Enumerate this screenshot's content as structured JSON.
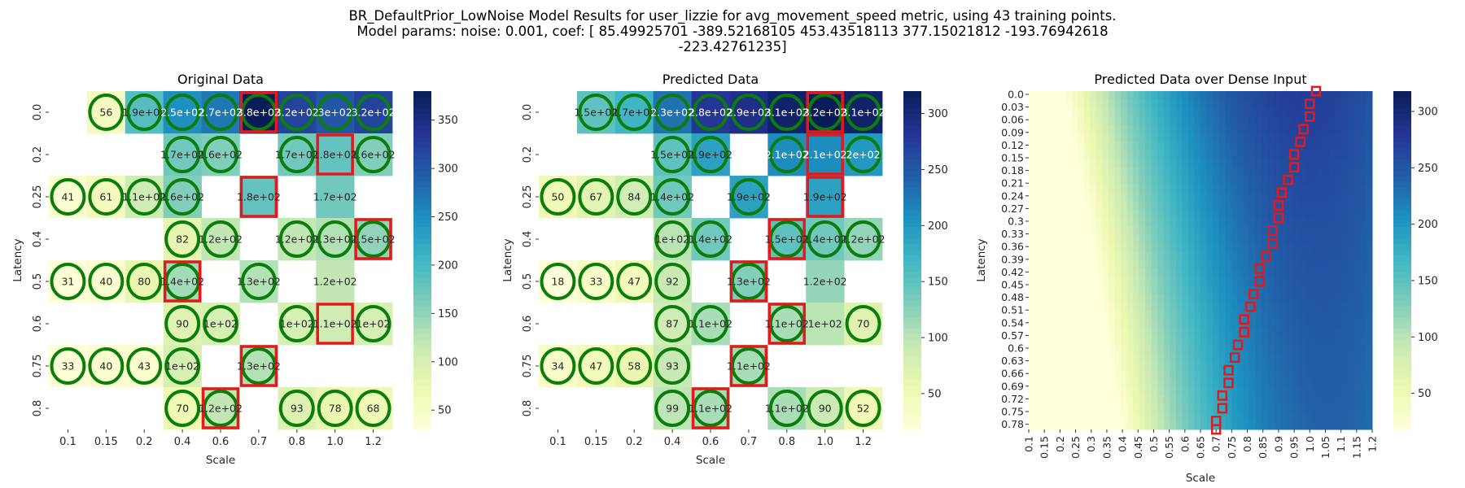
{
  "figure": {
    "title_lines": [
      "BR_DefaultPrior_LowNoise Model Results for user_lizzie for avg_movement_speed metric, using 43 training points.",
      "Model params: noise: 0.001, coef: [  85.49925701 -389.52168105  453.43518113  377.15021812 -193.76942618",
      "-223.42761235]"
    ]
  },
  "chart_data": [
    {
      "type": "heatmap",
      "title": "Original Data",
      "xlabel": "Scale",
      "ylabel": "Latency",
      "x_categories": [
        "0.1",
        "0.15",
        "0.2",
        "0.4",
        "0.6",
        "0.7",
        "0.8",
        "1.0",
        "1.2"
      ],
      "y_categories": [
        "0.0",
        "0.2",
        "0.25",
        "0.4",
        "0.5",
        "0.6",
        "0.75",
        "0.8"
      ],
      "cells": [
        {
          "r": 0,
          "c": 1,
          "v": 56,
          "label": "56",
          "circle": true
        },
        {
          "r": 0,
          "c": 2,
          "v": 190,
          "label": "1.9e+02",
          "circle": true
        },
        {
          "r": 0,
          "c": 3,
          "v": 250,
          "label": "2.5e+02",
          "circle": true
        },
        {
          "r": 0,
          "c": 4,
          "v": 270,
          "label": "2.7e+02",
          "circle": true
        },
        {
          "r": 0,
          "c": 5,
          "v": 380,
          "label": "3.8e+02",
          "circle": true,
          "box": true
        },
        {
          "r": 0,
          "c": 6,
          "v": 320,
          "label": "3.2e+02",
          "circle": true
        },
        {
          "r": 0,
          "c": 7,
          "v": 300,
          "label": "3e+02",
          "circle": true
        },
        {
          "r": 0,
          "c": 8,
          "v": 320,
          "label": "3.2e+02",
          "circle": true
        },
        {
          "r": 1,
          "c": 3,
          "v": 170,
          "label": "1.7e+02",
          "circle": true
        },
        {
          "r": 1,
          "c": 4,
          "v": 160,
          "label": "1.6e+02",
          "circle": true
        },
        {
          "r": 1,
          "c": 6,
          "v": 170,
          "label": "1.7e+02",
          "circle": true
        },
        {
          "r": 1,
          "c": 7,
          "v": 180,
          "label": "1.8e+02",
          "circle": false,
          "box": true
        },
        {
          "r": 1,
          "c": 8,
          "v": 160,
          "label": "1.6e+02",
          "circle": true
        },
        {
          "r": 2,
          "c": 0,
          "v": 41,
          "label": "41",
          "circle": true
        },
        {
          "r": 2,
          "c": 1,
          "v": 61,
          "label": "61",
          "circle": true
        },
        {
          "r": 2,
          "c": 2,
          "v": 110,
          "label": "1.1e+02",
          "circle": true
        },
        {
          "r": 2,
          "c": 3,
          "v": 160,
          "label": "1.6e+02",
          "circle": true
        },
        {
          "r": 2,
          "c": 5,
          "v": 180,
          "label": "1.8e+02",
          "circle": false,
          "box": true
        },
        {
          "r": 2,
          "c": 7,
          "v": 170,
          "label": "1.7e+02",
          "circle": false
        },
        {
          "r": 3,
          "c": 3,
          "v": 82,
          "label": "82",
          "circle": true
        },
        {
          "r": 3,
          "c": 4,
          "v": 120,
          "label": "1.2e+02",
          "circle": true
        },
        {
          "r": 3,
          "c": 6,
          "v": 120,
          "label": "1.2e+02",
          "circle": true
        },
        {
          "r": 3,
          "c": 7,
          "v": 130,
          "label": "1.3e+02",
          "circle": true
        },
        {
          "r": 3,
          "c": 8,
          "v": 150,
          "label": "1.5e+02",
          "circle": true,
          "box": true
        },
        {
          "r": 4,
          "c": 0,
          "v": 31,
          "label": "31",
          "circle": true
        },
        {
          "r": 4,
          "c": 1,
          "v": 40,
          "label": "40",
          "circle": true
        },
        {
          "r": 4,
          "c": 2,
          "v": 80,
          "label": "80",
          "circle": true
        },
        {
          "r": 4,
          "c": 3,
          "v": 140,
          "label": "1.4e+02",
          "circle": true,
          "box": true
        },
        {
          "r": 4,
          "c": 5,
          "v": 130,
          "label": "1.3e+02",
          "circle": true
        },
        {
          "r": 4,
          "c": 7,
          "v": 120,
          "label": "1.2e+02",
          "circle": false
        },
        {
          "r": 5,
          "c": 3,
          "v": 90,
          "label": "90",
          "circle": true
        },
        {
          "r": 5,
          "c": 4,
          "v": 100,
          "label": "1e+02",
          "circle": true
        },
        {
          "r": 5,
          "c": 6,
          "v": 100,
          "label": "1e+02",
          "circle": true
        },
        {
          "r": 5,
          "c": 7,
          "v": 110,
          "label": "1.1e+02",
          "circle": false,
          "box": true
        },
        {
          "r": 5,
          "c": 8,
          "v": 100,
          "label": "1e+02",
          "circle": true
        },
        {
          "r": 6,
          "c": 0,
          "v": 33,
          "label": "33",
          "circle": true
        },
        {
          "r": 6,
          "c": 1,
          "v": 40,
          "label": "40",
          "circle": true
        },
        {
          "r": 6,
          "c": 2,
          "v": 43,
          "label": "43",
          "circle": true
        },
        {
          "r": 6,
          "c": 3,
          "v": 100,
          "label": "1e+02",
          "circle": true
        },
        {
          "r": 6,
          "c": 5,
          "v": 130,
          "label": "1.3e+02",
          "circle": true,
          "box": true
        },
        {
          "r": 7,
          "c": 3,
          "v": 70,
          "label": "70",
          "circle": true
        },
        {
          "r": 7,
          "c": 4,
          "v": 120,
          "label": "1.2e+02",
          "circle": true,
          "box": true
        },
        {
          "r": 7,
          "c": 6,
          "v": 93,
          "label": "93",
          "circle": true
        },
        {
          "r": 7,
          "c": 7,
          "v": 78,
          "label": "78",
          "circle": true
        },
        {
          "r": 7,
          "c": 8,
          "v": 68,
          "label": "68",
          "circle": true
        }
      ],
      "colorbar": {
        "vmin": 30,
        "vmax": 380,
        "ticks": [
          50,
          100,
          150,
          200,
          250,
          300,
          350
        ]
      }
    },
    {
      "type": "heatmap",
      "title": "Predicted Data",
      "xlabel": "Scale",
      "ylabel": "Latency",
      "x_categories": [
        "0.1",
        "0.15",
        "0.2",
        "0.4",
        "0.6",
        "0.7",
        "0.8",
        "1.0",
        "1.2"
      ],
      "y_categories": [
        "0.0",
        "0.2",
        "0.25",
        "0.4",
        "0.5",
        "0.6",
        "0.75",
        "0.8"
      ],
      "cells": [
        {
          "r": 0,
          "c": 1,
          "v": 150,
          "label": "1.5e+02",
          "circle": true
        },
        {
          "r": 0,
          "c": 2,
          "v": 170,
          "label": "1.7e+02",
          "circle": true
        },
        {
          "r": 0,
          "c": 3,
          "v": 230,
          "label": "2.3e+02",
          "circle": true
        },
        {
          "r": 0,
          "c": 4,
          "v": 280,
          "label": "2.8e+02",
          "circle": true
        },
        {
          "r": 0,
          "c": 5,
          "v": 290,
          "label": "2.9e+02",
          "circle": true
        },
        {
          "r": 0,
          "c": 6,
          "v": 310,
          "label": "3.1e+02",
          "circle": true
        },
        {
          "r": 0,
          "c": 7,
          "v": 320,
          "label": "3.2e+02",
          "circle": true,
          "box": true
        },
        {
          "r": 0,
          "c": 8,
          "v": 310,
          "label": "3.1e+02",
          "circle": true
        },
        {
          "r": 1,
          "c": 3,
          "v": 150,
          "label": "1.5e+02",
          "circle": true
        },
        {
          "r": 1,
          "c": 4,
          "v": 190,
          "label": "1.9e+02",
          "circle": true
        },
        {
          "r": 1,
          "c": 6,
          "v": 210,
          "label": "2.1e+02",
          "circle": true
        },
        {
          "r": 1,
          "c": 7,
          "v": 210,
          "label": "2.1e+02",
          "circle": false,
          "box": true
        },
        {
          "r": 1,
          "c": 8,
          "v": 200,
          "label": "2e+02",
          "circle": true
        },
        {
          "r": 2,
          "c": 0,
          "v": 50,
          "label": "50",
          "circle": true
        },
        {
          "r": 2,
          "c": 1,
          "v": 67,
          "label": "67",
          "circle": true
        },
        {
          "r": 2,
          "c": 2,
          "v": 84,
          "label": "84",
          "circle": true
        },
        {
          "r": 2,
          "c": 3,
          "v": 140,
          "label": "1.4e+02",
          "circle": true
        },
        {
          "r": 2,
          "c": 5,
          "v": 190,
          "label": "1.9e+02",
          "circle": true
        },
        {
          "r": 2,
          "c": 7,
          "v": 190,
          "label": "1.9e+02",
          "circle": false,
          "box": true
        },
        {
          "r": 3,
          "c": 3,
          "v": 100,
          "label": "1e+02",
          "circle": true
        },
        {
          "r": 3,
          "c": 4,
          "v": 140,
          "label": "1.4e+02",
          "circle": true
        },
        {
          "r": 3,
          "c": 6,
          "v": 150,
          "label": "1.5e+02",
          "circle": true,
          "box": true
        },
        {
          "r": 3,
          "c": 7,
          "v": 140,
          "label": "1.4e+02",
          "circle": true
        },
        {
          "r": 3,
          "c": 8,
          "v": 120,
          "label": "1.2e+02",
          "circle": true
        },
        {
          "r": 4,
          "c": 0,
          "v": 18,
          "label": "18",
          "circle": true
        },
        {
          "r": 4,
          "c": 1,
          "v": 33,
          "label": "33",
          "circle": true
        },
        {
          "r": 4,
          "c": 2,
          "v": 47,
          "label": "47",
          "circle": true
        },
        {
          "r": 4,
          "c": 3,
          "v": 92,
          "label": "92",
          "circle": true
        },
        {
          "r": 4,
          "c": 5,
          "v": 130,
          "label": "1.3e+02",
          "circle": true,
          "box": true
        },
        {
          "r": 4,
          "c": 7,
          "v": 120,
          "label": "1.2e+02",
          "circle": false
        },
        {
          "r": 5,
          "c": 3,
          "v": 87,
          "label": "87",
          "circle": true
        },
        {
          "r": 5,
          "c": 4,
          "v": 110,
          "label": "1.1e+02",
          "circle": true
        },
        {
          "r": 5,
          "c": 6,
          "v": 110,
          "label": "1.1e+02",
          "circle": true,
          "box": true
        },
        {
          "r": 5,
          "c": 7,
          "v": 100,
          "label": "1e+02",
          "circle": false
        },
        {
          "r": 5,
          "c": 8,
          "v": 70,
          "label": "70",
          "circle": true
        },
        {
          "r": 6,
          "c": 0,
          "v": 34,
          "label": "34",
          "circle": true
        },
        {
          "r": 6,
          "c": 1,
          "v": 47,
          "label": "47",
          "circle": true
        },
        {
          "r": 6,
          "c": 2,
          "v": 58,
          "label": "58",
          "circle": true
        },
        {
          "r": 6,
          "c": 3,
          "v": 93,
          "label": "93",
          "circle": true
        },
        {
          "r": 6,
          "c": 5,
          "v": 110,
          "label": "1.1e+02",
          "circle": true,
          "box": true
        },
        {
          "r": 7,
          "c": 3,
          "v": 99,
          "label": "99",
          "circle": true
        },
        {
          "r": 7,
          "c": 4,
          "v": 110,
          "label": "1.1e+02",
          "circle": true,
          "box": true
        },
        {
          "r": 7,
          "c": 6,
          "v": 110,
          "label": "1.1e+02",
          "circle": true
        },
        {
          "r": 7,
          "c": 7,
          "v": 90,
          "label": "90",
          "circle": true
        },
        {
          "r": 7,
          "c": 8,
          "v": 52,
          "label": "52",
          "circle": true
        }
      ],
      "colorbar": {
        "vmin": 18,
        "vmax": 320,
        "ticks": [
          50,
          100,
          150,
          200,
          250,
          300
        ]
      }
    },
    {
      "type": "heatmap",
      "title": "Predicted Data over Dense Input",
      "xlabel": "Scale",
      "ylabel": "Latency",
      "x_tick_labels": [
        "0.1",
        "0.15",
        "0.2",
        "0.25",
        "0.3",
        "0.35",
        "0.4",
        "0.45",
        "0.5",
        "0.55",
        "0.6",
        "0.65",
        "0.7",
        "0.75",
        "0.8",
        "0.85",
        "0.9",
        "0.95",
        "1.0",
        "1.05",
        "1.1",
        "1.15",
        "1.2"
      ],
      "y_tick_labels": [
        "0.0",
        "0.03",
        "0.06",
        "0.09",
        "0.12",
        "0.15",
        "0.18",
        "0.21",
        "0.24",
        "0.27",
        "0.3",
        "0.33",
        "0.36",
        "0.39",
        "0.42",
        "0.45",
        "0.48",
        "0.51",
        "0.54",
        "0.57",
        "0.6",
        "0.63",
        "0.66",
        "0.69",
        "0.72",
        "0.75",
        "0.78"
      ],
      "x_range": [
        0.1,
        1.2
      ],
      "y_range": [
        0.0,
        0.8
      ],
      "colorbar": {
        "vmin": 18,
        "vmax": 318,
        "ticks": [
          50,
          100,
          150,
          200,
          250,
          300
        ]
      },
      "optimum_path": [
        {
          "latency": 0.0,
          "scale": 1.02
        },
        {
          "latency": 0.03,
          "scale": 1.0
        },
        {
          "latency": 0.06,
          "scale": 1.0
        },
        {
          "latency": 0.09,
          "scale": 0.98
        },
        {
          "latency": 0.12,
          "scale": 0.97
        },
        {
          "latency": 0.15,
          "scale": 0.95
        },
        {
          "latency": 0.18,
          "scale": 0.95
        },
        {
          "latency": 0.21,
          "scale": 0.93
        },
        {
          "latency": 0.24,
          "scale": 0.91
        },
        {
          "latency": 0.27,
          "scale": 0.9
        },
        {
          "latency": 0.3,
          "scale": 0.9
        },
        {
          "latency": 0.33,
          "scale": 0.88
        },
        {
          "latency": 0.36,
          "scale": 0.88
        },
        {
          "latency": 0.39,
          "scale": 0.86
        },
        {
          "latency": 0.42,
          "scale": 0.84
        },
        {
          "latency": 0.45,
          "scale": 0.84
        },
        {
          "latency": 0.48,
          "scale": 0.82
        },
        {
          "latency": 0.51,
          "scale": 0.81
        },
        {
          "latency": 0.54,
          "scale": 0.79
        },
        {
          "latency": 0.57,
          "scale": 0.79
        },
        {
          "latency": 0.6,
          "scale": 0.77
        },
        {
          "latency": 0.63,
          "scale": 0.76
        },
        {
          "latency": 0.66,
          "scale": 0.74
        },
        {
          "latency": 0.69,
          "scale": 0.74
        },
        {
          "latency": 0.72,
          "scale": 0.72
        },
        {
          "latency": 0.75,
          "scale": 0.72
        },
        {
          "latency": 0.78,
          "scale": 0.7
        },
        {
          "latency": 0.8,
          "scale": 0.7
        }
      ]
    }
  ]
}
